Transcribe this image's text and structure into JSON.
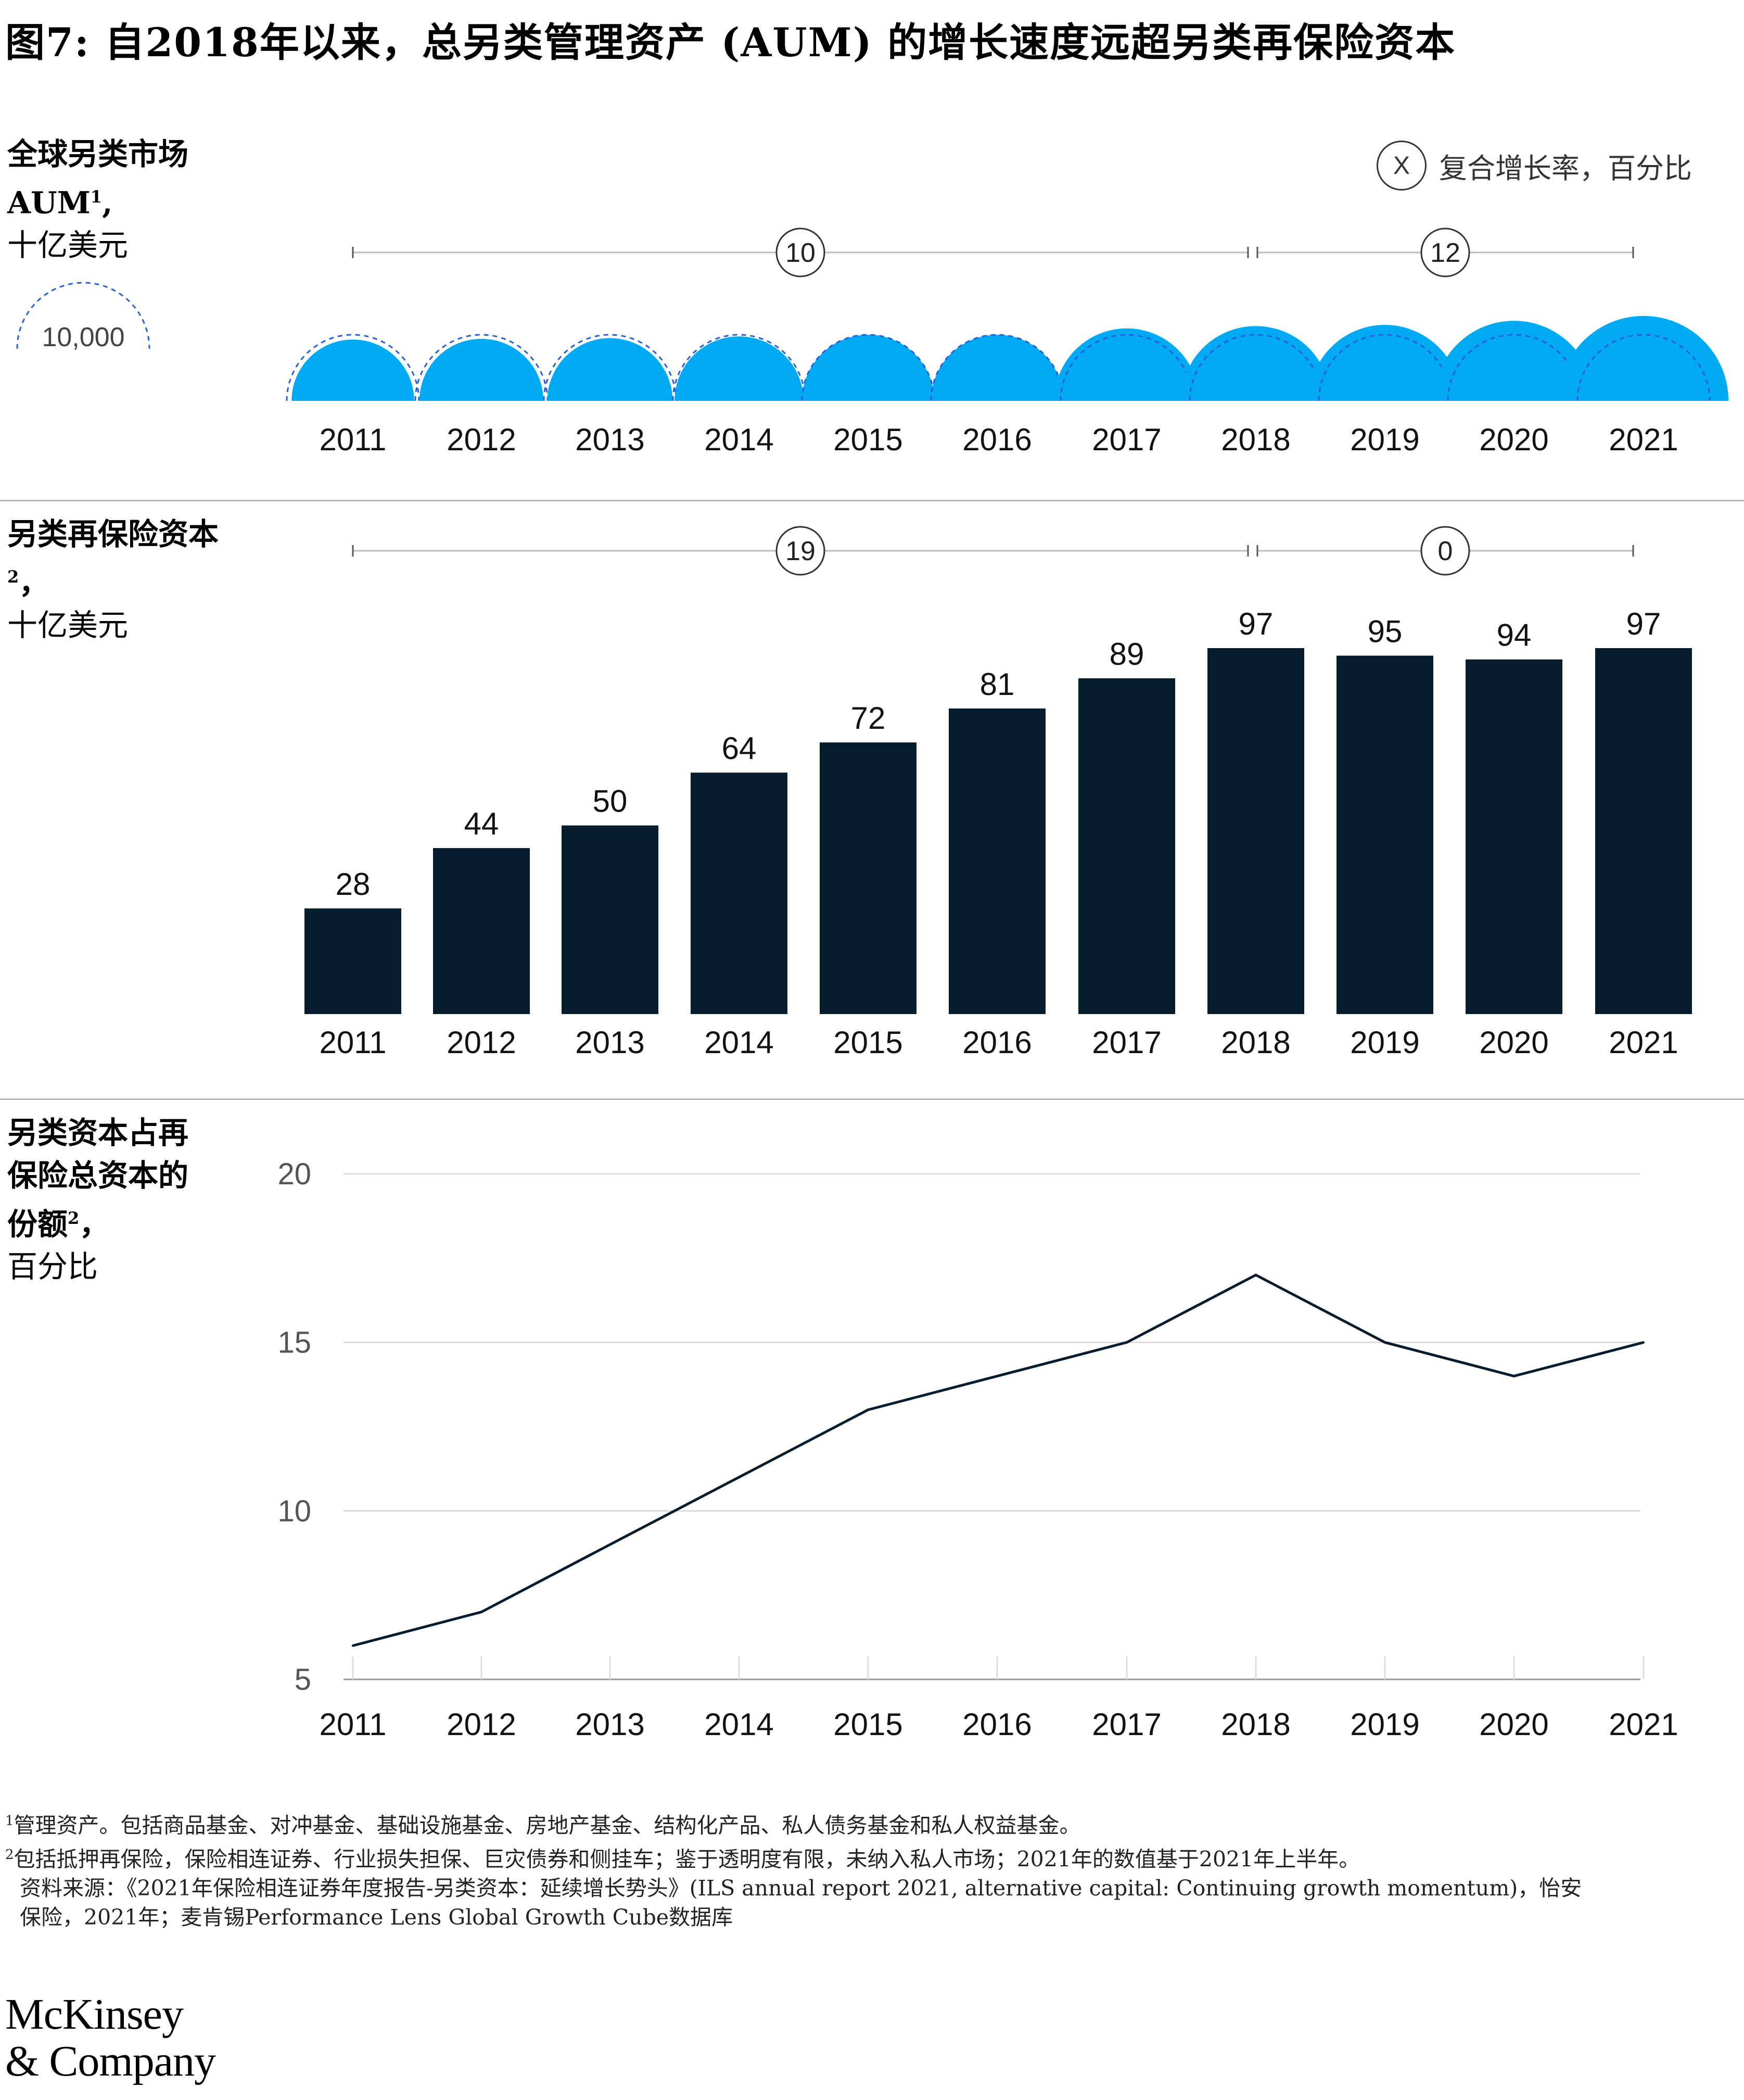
{
  "title": "图7: 自2018年以来，总另类管理资产 (AUM) 的增长速度远超另类再保险资本",
  "legend": {
    "marker": "X",
    "text": "复合增长率，百分比"
  },
  "section1": {
    "label_line1": "全球另类市场",
    "label_line2": "AUM",
    "label_sup": "1",
    "label_line2_suffix": ",",
    "unit": "十亿美元",
    "scale_reference": "10,000",
    "cagr": [
      "10",
      "12"
    ]
  },
  "section2": {
    "label": "另类再保险资本",
    "label_sup": "2",
    "label_suffix": "，",
    "unit": "十亿美元",
    "cagr": [
      "19",
      "0"
    ]
  },
  "section3": {
    "label_line1": "另类资本占再",
    "label_line2": "保险总资本的",
    "label_line3": "份额",
    "label_sup": "2",
    "label_suffix": "，",
    "unit": "百分比"
  },
  "chart_data": [
    {
      "type": "area",
      "x": [
        "2011",
        "2012",
        "2013",
        "2014",
        "2015",
        "2016",
        "2017",
        "2018",
        "2019",
        "2020",
        "2021"
      ],
      "aum_relative_size": [
        0.86,
        0.88,
        0.9,
        0.95,
        1.0,
        1.0,
        1.2,
        1.28,
        1.32,
        1.47,
        1.65
      ],
      "color": "#00A9F4"
    },
    {
      "type": "bar",
      "categories": [
        "2011",
        "2012",
        "2013",
        "2014",
        "2015",
        "2016",
        "2017",
        "2018",
        "2019",
        "2020",
        "2021"
      ],
      "values": [
        28,
        44,
        50,
        64,
        72,
        81,
        89,
        97,
        95,
        94,
        97
      ],
      "ylim": [
        0,
        100
      ],
      "color": "#051C2C"
    },
    {
      "type": "line",
      "x": [
        "2011",
        "2012",
        "2013",
        "2014",
        "2015",
        "2016",
        "2017",
        "2018",
        "2019",
        "2020",
        "2021"
      ],
      "values": [
        6,
        7,
        9,
        11,
        13,
        14,
        15,
        17,
        15,
        14,
        15
      ],
      "yticks": [
        "5",
        "10",
        "15",
        "20"
      ],
      "ylim": [
        5,
        20
      ],
      "grid": true,
      "color": "#051C2C"
    }
  ],
  "footnotes": {
    "note1_sup": "1",
    "note1": "管理资产。包括商品基金、对冲基金、基础设施基金、房地产基金、结构化产品、私人债务基金和私人权益基金。",
    "note2_sup": "2",
    "note2": "包括抵押再保险，保险相连证券、行业损失担保、巨灾债券和侧挂车；鉴于透明度有限，未纳入私人市场；2021年的数值基于2021年上半年。",
    "source_line1": "资料来源：《2021年保险相连证券年度报告-另类资本：延续增长势头》(ILS annual report 2021, alternative capital: Continuing growth momentum)，怡安",
    "source_line2": "保险，2021年；麦肯锡Performance Lens Global Growth Cube数据库"
  },
  "logo": {
    "line1": "McKinsey",
    "line2": "& Company"
  }
}
